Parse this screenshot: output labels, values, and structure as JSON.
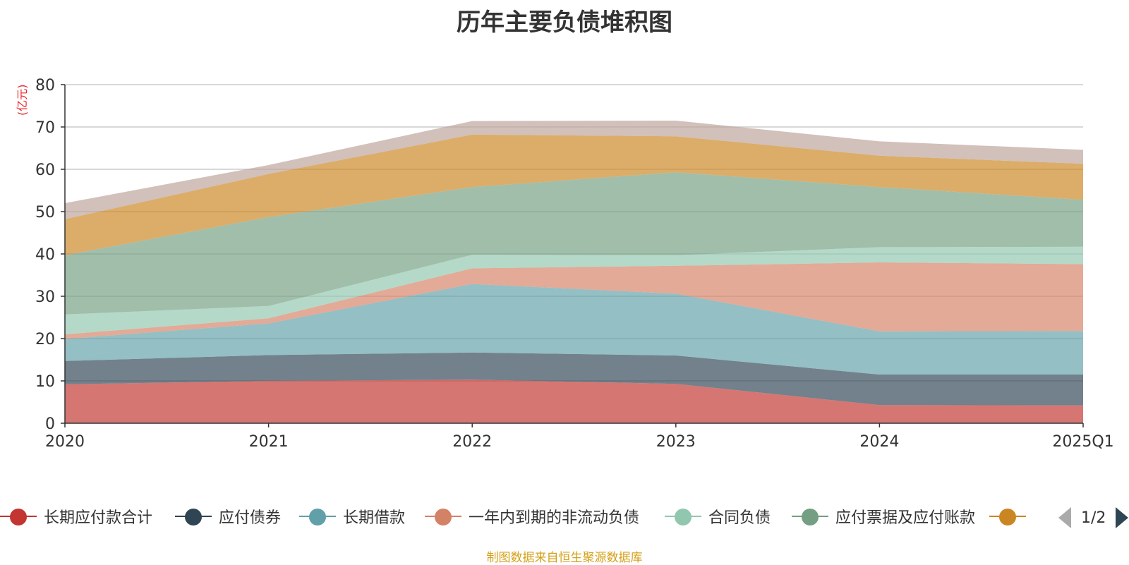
{
  "chart_data": {
    "type": "area",
    "stacked": true,
    "title": "历年主要负债堆积图",
    "unit_label": "(亿元)",
    "categories": [
      "2020",
      "2021",
      "2022",
      "2023",
      "2024",
      "2025Q1"
    ],
    "ylim": [
      0,
      80
    ],
    "yticks": [
      0,
      10,
      20,
      30,
      40,
      50,
      60,
      70,
      80
    ],
    "grid": true,
    "legend_position": "bottom",
    "series": [
      {
        "name": "长期应付款合计",
        "color": "#c23531",
        "values": [
          9.2,
          10.0,
          10.3,
          9.3,
          4.3,
          4.2
        ]
      },
      {
        "name": "应付债券",
        "color": "#2f4554",
        "values": [
          5.5,
          6.1,
          6.4,
          6.7,
          7.2,
          7.3
        ]
      },
      {
        "name": "长期借款",
        "color": "#61a0a8",
        "values": [
          5.2,
          7.5,
          16.2,
          14.6,
          10.2,
          10.3
        ]
      },
      {
        "name": "一年内到期的非流动负债",
        "color": "#d48265",
        "values": [
          1.1,
          1.2,
          3.7,
          6.6,
          16.3,
          15.8
        ]
      },
      {
        "name": "合同负债",
        "color": "#91c7ae",
        "values": [
          4.7,
          2.9,
          3.2,
          2.5,
          3.6,
          4.1
        ]
      },
      {
        "name": "应付票据及应付账款",
        "color": "#749f83",
        "values": [
          14.0,
          21.0,
          16.0,
          19.6,
          14.2,
          11.1
        ]
      },
      {
        "name": "",
        "color": "#ca8622",
        "values": [
          8.5,
          10.2,
          12.4,
          8.5,
          7.4,
          8.5
        ]
      },
      {
        "name": "",
        "color": "#bda29a",
        "values": [
          3.8,
          2.1,
          3.2,
          3.7,
          3.4,
          3.3
        ]
      }
    ]
  },
  "legend": {
    "page_indicator": "1/2"
  },
  "footer": {
    "source": "制图数据来自恒生聚源数据库"
  }
}
